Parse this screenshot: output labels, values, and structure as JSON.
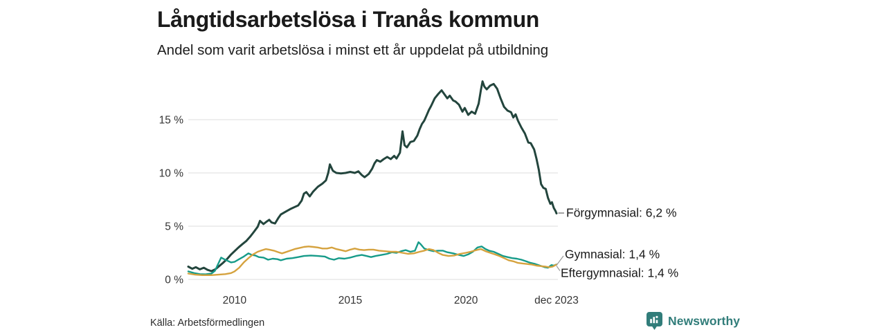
{
  "header": {
    "title": "Långtidsarbetslösa i Tranås kommun",
    "subtitle": "Andel som varit arbetslösa i minst ett år uppdelat på utbildning"
  },
  "footer": {
    "source": "Källa: Arbetsförmedlingen",
    "brand": "Newsworthy"
  },
  "colors": {
    "grid": "#e3e3e3",
    "tick_text": "#333333",
    "annotation_text": "#1a1a1a",
    "connector": "#999999",
    "dash": "#6f6f6f",
    "brand_teal": "#317d7a",
    "series_forgymnasial": "#23453d",
    "series_gymnasial": "#169b89",
    "series_eftergymnasial": "#d5a23e"
  },
  "chart_data": {
    "type": "line",
    "title": "Långtidsarbetslösa i Tranås kommun",
    "subtitle": "Andel som varit arbetslösa i minst ett år uppdelat på utbildning",
    "grid": true,
    "legend_position": "end-of-line labels",
    "x_axis": {
      "range": [
        2008.0,
        2023.917
      ],
      "ticks": [
        {
          "value": 2010,
          "label": "2010"
        },
        {
          "value": 2015,
          "label": "2015"
        },
        {
          "value": 2020,
          "label": "2020"
        },
        {
          "value": 2023.917,
          "label": "dec 2023"
        }
      ]
    },
    "y_axis": {
      "unit": "%",
      "ylim": [
        0,
        19
      ],
      "ticks": [
        {
          "value": 0,
          "label": "0 %"
        },
        {
          "value": 5,
          "label": "5 %"
        },
        {
          "value": 10,
          "label": "10 %"
        },
        {
          "value": 15,
          "label": "15 %"
        }
      ]
    },
    "series": [
      {
        "id": "forgymnasial",
        "name": "Förgymnasial",
        "label": "Förgymnasial: 6,2 %",
        "end_value": 6.2,
        "color": "#23453d",
        "points": [
          [
            2008.0,
            1.2
          ],
          [
            2008.17,
            1.0
          ],
          [
            2008.33,
            1.15
          ],
          [
            2008.5,
            0.95
          ],
          [
            2008.67,
            1.1
          ],
          [
            2008.83,
            0.9
          ],
          [
            2009.0,
            0.78
          ],
          [
            2009.17,
            0.95
          ],
          [
            2009.33,
            1.25
          ],
          [
            2009.5,
            1.55
          ],
          [
            2009.67,
            1.9
          ],
          [
            2009.83,
            2.3
          ],
          [
            2010.0,
            2.65
          ],
          [
            2010.17,
            3.0
          ],
          [
            2010.33,
            3.3
          ],
          [
            2010.5,
            3.6
          ],
          [
            2010.67,
            4.0
          ],
          [
            2010.83,
            4.45
          ],
          [
            2011.0,
            4.95
          ],
          [
            2011.1,
            5.5
          ],
          [
            2011.25,
            5.2
          ],
          [
            2011.4,
            5.45
          ],
          [
            2011.5,
            5.6
          ],
          [
            2011.6,
            5.35
          ],
          [
            2011.75,
            5.25
          ],
          [
            2011.9,
            5.8
          ],
          [
            2012.0,
            6.1
          ],
          [
            2012.2,
            6.35
          ],
          [
            2012.4,
            6.6
          ],
          [
            2012.6,
            6.8
          ],
          [
            2012.75,
            6.95
          ],
          [
            2012.9,
            7.4
          ],
          [
            2013.0,
            8.05
          ],
          [
            2013.1,
            8.2
          ],
          [
            2013.25,
            7.8
          ],
          [
            2013.4,
            8.25
          ],
          [
            2013.6,
            8.7
          ],
          [
            2013.8,
            9.0
          ],
          [
            2013.95,
            9.3
          ],
          [
            2014.05,
            10.0
          ],
          [
            2014.12,
            10.8
          ],
          [
            2014.25,
            10.2
          ],
          [
            2014.4,
            10.0
          ],
          [
            2014.6,
            9.95
          ],
          [
            2014.8,
            10.0
          ],
          [
            2015.0,
            10.1
          ],
          [
            2015.2,
            10.0
          ],
          [
            2015.35,
            10.15
          ],
          [
            2015.5,
            9.8
          ],
          [
            2015.62,
            9.6
          ],
          [
            2015.8,
            9.9
          ],
          [
            2015.95,
            10.4
          ],
          [
            2016.05,
            10.9
          ],
          [
            2016.15,
            11.2
          ],
          [
            2016.3,
            11.05
          ],
          [
            2016.45,
            11.3
          ],
          [
            2016.6,
            11.5
          ],
          [
            2016.75,
            11.3
          ],
          [
            2016.9,
            11.6
          ],
          [
            2017.0,
            11.35
          ],
          [
            2017.15,
            11.9
          ],
          [
            2017.26,
            13.9
          ],
          [
            2017.35,
            12.6
          ],
          [
            2017.45,
            12.4
          ],
          [
            2017.6,
            12.9
          ],
          [
            2017.75,
            13.0
          ],
          [
            2017.9,
            13.5
          ],
          [
            2018.0,
            14.1
          ],
          [
            2018.1,
            14.6
          ],
          [
            2018.2,
            14.9
          ],
          [
            2018.3,
            15.4
          ],
          [
            2018.4,
            15.9
          ],
          [
            2018.5,
            16.3
          ],
          [
            2018.65,
            17.0
          ],
          [
            2018.8,
            17.4
          ],
          [
            2018.95,
            17.75
          ],
          [
            2019.1,
            17.3
          ],
          [
            2019.2,
            17.0
          ],
          [
            2019.3,
            17.25
          ],
          [
            2019.45,
            16.8
          ],
          [
            2019.55,
            16.7
          ],
          [
            2019.7,
            16.4
          ],
          [
            2019.85,
            15.75
          ],
          [
            2019.95,
            16.1
          ],
          [
            2020.1,
            15.45
          ],
          [
            2020.25,
            15.75
          ],
          [
            2020.4,
            15.55
          ],
          [
            2020.55,
            16.5
          ],
          [
            2020.65,
            17.8
          ],
          [
            2020.72,
            18.6
          ],
          [
            2020.8,
            18.1
          ],
          [
            2020.9,
            17.85
          ],
          [
            2021.05,
            18.2
          ],
          [
            2021.2,
            18.35
          ],
          [
            2021.35,
            17.9
          ],
          [
            2021.5,
            17.0
          ],
          [
            2021.65,
            16.2
          ],
          [
            2021.8,
            15.85
          ],
          [
            2021.95,
            15.7
          ],
          [
            2022.05,
            15.2
          ],
          [
            2022.15,
            15.5
          ],
          [
            2022.25,
            14.9
          ],
          [
            2022.4,
            14.25
          ],
          [
            2022.55,
            13.7
          ],
          [
            2022.7,
            12.85
          ],
          [
            2022.8,
            12.8
          ],
          [
            2022.95,
            12.2
          ],
          [
            2023.05,
            11.35
          ],
          [
            2023.15,
            10.3
          ],
          [
            2023.25,
            8.95
          ],
          [
            2023.35,
            8.6
          ],
          [
            2023.45,
            8.5
          ],
          [
            2023.55,
            7.65
          ],
          [
            2023.65,
            7.1
          ],
          [
            2023.72,
            7.25
          ],
          [
            2023.8,
            6.7
          ],
          [
            2023.87,
            6.45
          ],
          [
            2023.917,
            6.2
          ]
        ]
      },
      {
        "id": "gymnasial",
        "name": "Gymnasial",
        "label": "Gymnasial: 1,4 %",
        "end_value": 1.4,
        "color": "#169b89",
        "points": [
          [
            2008.0,
            0.75
          ],
          [
            2008.25,
            0.6
          ],
          [
            2008.5,
            0.5
          ],
          [
            2008.75,
            0.48
          ],
          [
            2009.0,
            0.55
          ],
          [
            2009.15,
            0.8
          ],
          [
            2009.3,
            1.5
          ],
          [
            2009.42,
            2.05
          ],
          [
            2009.55,
            1.9
          ],
          [
            2009.7,
            1.75
          ],
          [
            2009.85,
            1.6
          ],
          [
            2010.0,
            1.65
          ],
          [
            2010.2,
            1.9
          ],
          [
            2010.4,
            2.15
          ],
          [
            2010.6,
            2.45
          ],
          [
            2010.75,
            2.3
          ],
          [
            2010.9,
            2.25
          ],
          [
            2011.05,
            2.1
          ],
          [
            2011.25,
            2.05
          ],
          [
            2011.45,
            1.85
          ],
          [
            2011.65,
            1.95
          ],
          [
            2011.85,
            1.9
          ],
          [
            2012.0,
            1.8
          ],
          [
            2012.25,
            1.95
          ],
          [
            2012.5,
            2.0
          ],
          [
            2012.75,
            2.1
          ],
          [
            2013.0,
            2.2
          ],
          [
            2013.3,
            2.25
          ],
          [
            2013.6,
            2.2
          ],
          [
            2013.9,
            2.15
          ],
          [
            2014.1,
            1.95
          ],
          [
            2014.3,
            1.85
          ],
          [
            2014.5,
            2.0
          ],
          [
            2014.75,
            1.95
          ],
          [
            2015.0,
            2.05
          ],
          [
            2015.25,
            2.2
          ],
          [
            2015.5,
            2.3
          ],
          [
            2015.7,
            2.2
          ],
          [
            2015.9,
            2.1
          ],
          [
            2016.1,
            2.2
          ],
          [
            2016.35,
            2.3
          ],
          [
            2016.6,
            2.4
          ],
          [
            2016.8,
            2.55
          ],
          [
            2017.0,
            2.5
          ],
          [
            2017.2,
            2.65
          ],
          [
            2017.4,
            2.75
          ],
          [
            2017.6,
            2.6
          ],
          [
            2017.8,
            2.7
          ],
          [
            2017.95,
            3.5
          ],
          [
            2018.05,
            3.3
          ],
          [
            2018.2,
            2.9
          ],
          [
            2018.4,
            2.75
          ],
          [
            2018.6,
            2.65
          ],
          [
            2018.8,
            2.7
          ],
          [
            2019.0,
            2.7
          ],
          [
            2019.2,
            2.55
          ],
          [
            2019.45,
            2.45
          ],
          [
            2019.7,
            2.3
          ],
          [
            2019.9,
            2.2
          ],
          [
            2020.1,
            2.35
          ],
          [
            2020.3,
            2.6
          ],
          [
            2020.5,
            3.0
          ],
          [
            2020.68,
            3.1
          ],
          [
            2020.85,
            2.85
          ],
          [
            2021.0,
            2.7
          ],
          [
            2021.2,
            2.6
          ],
          [
            2021.4,
            2.4
          ],
          [
            2021.6,
            2.2
          ],
          [
            2021.8,
            2.1
          ],
          [
            2022.0,
            2.0
          ],
          [
            2022.2,
            1.95
          ],
          [
            2022.4,
            1.85
          ],
          [
            2022.6,
            1.7
          ],
          [
            2022.8,
            1.55
          ],
          [
            2023.0,
            1.45
          ],
          [
            2023.2,
            1.3
          ],
          [
            2023.4,
            1.15
          ],
          [
            2023.55,
            1.1
          ],
          [
            2023.7,
            1.35
          ],
          [
            2023.8,
            1.3
          ],
          [
            2023.917,
            1.4
          ]
        ]
      },
      {
        "id": "eftergymnasial",
        "name": "Eftergymnasial",
        "label": "Eftergymnasial: 1,4 %",
        "end_value": 1.4,
        "color": "#d5a23e",
        "points": [
          [
            2008.0,
            0.55
          ],
          [
            2008.3,
            0.45
          ],
          [
            2008.6,
            0.4
          ],
          [
            2009.0,
            0.4
          ],
          [
            2009.3,
            0.45
          ],
          [
            2009.6,
            0.5
          ],
          [
            2009.85,
            0.6
          ],
          [
            2010.0,
            0.75
          ],
          [
            2010.2,
            1.1
          ],
          [
            2010.4,
            1.6
          ],
          [
            2010.6,
            2.0
          ],
          [
            2010.8,
            2.35
          ],
          [
            2011.0,
            2.6
          ],
          [
            2011.2,
            2.75
          ],
          [
            2011.35,
            2.85
          ],
          [
            2011.5,
            2.8
          ],
          [
            2011.7,
            2.7
          ],
          [
            2011.9,
            2.55
          ],
          [
            2012.05,
            2.45
          ],
          [
            2012.2,
            2.55
          ],
          [
            2012.4,
            2.7
          ],
          [
            2012.6,
            2.85
          ],
          [
            2012.8,
            2.95
          ],
          [
            2013.0,
            3.05
          ],
          [
            2013.2,
            3.1
          ],
          [
            2013.4,
            3.05
          ],
          [
            2013.6,
            3.0
          ],
          [
            2013.8,
            2.9
          ],
          [
            2014.0,
            2.9
          ],
          [
            2014.2,
            3.0
          ],
          [
            2014.4,
            2.85
          ],
          [
            2014.6,
            2.75
          ],
          [
            2014.8,
            2.65
          ],
          [
            2015.0,
            2.8
          ],
          [
            2015.2,
            2.9
          ],
          [
            2015.4,
            2.8
          ],
          [
            2015.6,
            2.75
          ],
          [
            2015.8,
            2.8
          ],
          [
            2016.0,
            2.8
          ],
          [
            2016.25,
            2.7
          ],
          [
            2016.5,
            2.65
          ],
          [
            2016.75,
            2.6
          ],
          [
            2017.0,
            2.6
          ],
          [
            2017.25,
            2.5
          ],
          [
            2017.5,
            2.4
          ],
          [
            2017.75,
            2.45
          ],
          [
            2018.0,
            2.6
          ],
          [
            2018.2,
            2.7
          ],
          [
            2018.4,
            2.85
          ],
          [
            2018.6,
            2.75
          ],
          [
            2018.8,
            2.5
          ],
          [
            2019.0,
            2.3
          ],
          [
            2019.25,
            2.2
          ],
          [
            2019.5,
            2.25
          ],
          [
            2019.75,
            2.4
          ],
          [
            2020.0,
            2.5
          ],
          [
            2020.2,
            2.6
          ],
          [
            2020.45,
            2.75
          ],
          [
            2020.65,
            2.85
          ],
          [
            2020.85,
            2.65
          ],
          [
            2021.05,
            2.5
          ],
          [
            2021.25,
            2.35
          ],
          [
            2021.45,
            2.2
          ],
          [
            2021.65,
            2.0
          ],
          [
            2021.85,
            1.8
          ],
          [
            2022.05,
            1.7
          ],
          [
            2022.25,
            1.55
          ],
          [
            2022.45,
            1.5
          ],
          [
            2022.65,
            1.45
          ],
          [
            2022.85,
            1.4
          ],
          [
            2023.05,
            1.3
          ],
          [
            2023.25,
            1.25
          ],
          [
            2023.45,
            1.2
          ],
          [
            2023.6,
            1.15
          ],
          [
            2023.75,
            1.2
          ],
          [
            2023.917,
            1.4
          ]
        ]
      }
    ]
  }
}
